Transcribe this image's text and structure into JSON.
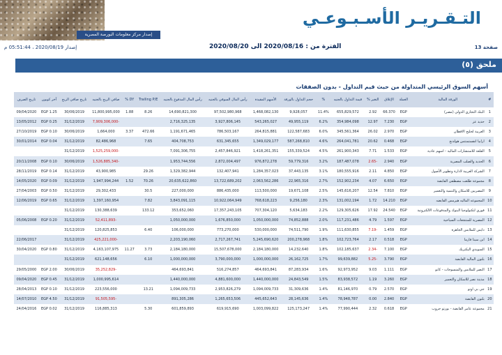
{
  "header": {
    "title": "التـقـريـر الأسـبـوعـي",
    "subtitle": "إصدار مركز معلومات البورصة المصرية",
    "page_label": "صفحة 13",
    "issue": "إصدار 2020/08/19 ، 05:51:44 م",
    "period": "الفترة من : 2020/08/16 الى 2020/08/20"
  },
  "section": {
    "title": "ملحق (٥)"
  },
  "table": {
    "title": "أسهم السوق الرئيسي المتداولة من حيث قيم التداول - بدون الصفقات",
    "columns": [
      "#",
      "الورقة المالية",
      "العملة",
      "الإغلاق",
      "التغير %",
      "قيمة التداول بالجنيه",
      "%",
      "حجم التداول بالورقة",
      "الأسهم المقيدة",
      "رأس المال السوقي بالجنيه",
      "رأس المال المدفوع بالجنيه",
      "Trailing P/E",
      "DY %",
      "صافي الربح بالجنيه",
      "تاريخ صافي الربح",
      "آخر كوبون",
      "تاريخ الصرف"
    ],
    "rows": [
      [
        "1",
        "البنك التجاري الدولي (مصر)",
        "EGP",
        "66.370",
        "2.92",
        "655,829,572",
        "11.4%",
        "9,928,057",
        "1,468,082,130",
        "97,502,980,968",
        "14,690,821,300",
        "8.26",
        "1.88",
        "11,800,995,000",
        "30/06/2019",
        "EGP 1.25",
        "09/04/2020"
      ],
      [
        "2",
        "حديد عز",
        "EGP",
        "7.230",
        "12.97",
        "354,984,098",
        "6.2%",
        "49,955,119",
        "543,265,027",
        "3,927,806,145",
        "2,716,325,135",
        "",
        "",
        "-7,909,306,000",
        "31/12/2019",
        "EGP 0.25",
        "13/05/2012"
      ],
      [
        "3",
        "العربية لحليج الاقطان",
        "EGP",
        "2.970",
        "26.02",
        "345,561,364",
        "6.0%",
        "122,587,683",
        "264,815,881",
        "786,503,167",
        "1,191,671,465",
        "472.66",
        "3.37",
        "1,664,000",
        "30/06/2019",
        "EGP 0.10",
        "27/10/2019"
      ],
      [
        "4",
        "ارابيا انفستمنتس هولدنج",
        "EGP",
        "0.468",
        "20.62",
        "264,041,781",
        "4.6%",
        "587,268,810",
        "1,349,029,177",
        "631,345,655",
        "404,708,753",
        "7.65",
        "",
        "82,486,968",
        "31/12/2019",
        "EGP 0.04",
        "30/01/2014"
      ],
      [
        "5",
        "القلعة للاستشارات المالية - اسهم عادية",
        "EGP",
        "1.533",
        "7.71",
        "261,900,343",
        "4.5%",
        "155,339,524",
        "1,418,261,351",
        "2,457,846,921",
        "7,091,306,755",
        "",
        "",
        "-1,525,259,000",
        "31/12/2019",
        "",
        ""
      ],
      [
        "6",
        "الحديد والصلب المصرية",
        "EGP",
        "2.940",
        "-2.65",
        "187,487,078",
        "3.2%",
        "59,779,316",
        "976,872,278",
        "2,872,004,497",
        "1,953,744,556",
        "",
        "",
        "-1,526,885,340",
        "30/06/2019",
        "EGP 0.10",
        "20/11/2008"
      ],
      [
        "7",
        "الشركة العربية لادارة وتطوير الأصول",
        "EGP",
        "4.850",
        "2.11",
        "180,555,916",
        "3.1%",
        "37,443,135",
        "1,284,357,023",
        "132,407,941",
        "1,329,382,944",
        "29.26",
        "",
        "43,900,985",
        "31/12/2019",
        "EGP 0.14",
        "28/11/2019"
      ],
      [
        "8",
        "مجموعة طلعت مصطفى القابضة",
        "EGP",
        "6.650",
        "4.07",
        "152,902,234",
        "2.7%",
        "22,965,316",
        "2,063,562,286",
        "13,722,689,202",
        "20,635,622,860",
        "70.26",
        "1.52",
        "1,947,994,244",
        "31/12/2019",
        "EGP 0.09",
        "14/05/2020"
      ],
      [
        "9",
        "المصريين للاسكان والتنمية والتعمير",
        "EGP",
        "7.810",
        "12.54",
        "145,616,207",
        "2.5%",
        "19,671,108",
        "113,500,000",
        "886,435,000",
        "227,000,000",
        "30.5",
        "",
        "29,302,433",
        "31/12/2019",
        "EGP 0.50",
        "27/04/2003"
      ],
      [
        "10",
        "المجموعه الماليه هيرمس القابضه",
        "EGP",
        "14.210",
        "1.72",
        "131,002,194",
        "2.3%",
        "9,256,180",
        "768,618,223",
        "10,922,064,949",
        "3,843,091,115",
        "7.82",
        "",
        "1,397,160,954",
        "31/12/2019",
        "EGP 0.65",
        "12/06/2019"
      ],
      [
        "11",
        "فوري لتكنولوجيا البنوك والمدفوعات الالكترونية",
        "EGP",
        "24.540",
        "17.92",
        "129,305,626",
        "2.2%",
        "5,634,183",
        "707,304,120",
        "17,357,243,105",
        "353,652,060",
        "133.12",
        "",
        "130,388,639",
        "31/12/2019",
        "",
        ""
      ],
      [
        "12",
        "المصرية للمنتجعات السياحية",
        "EGP",
        "1.597",
        "4.79",
        "117,231,486",
        "2.0%",
        "74,852,888",
        "1,050,000,000",
        "1,676,850,000",
        "1,050,000,000",
        "",
        "",
        "-52,411,893",
        "31/12/2019",
        "EGP 0.20",
        "05/06/2008"
      ],
      [
        "13",
        "دايس للملابس الجاهزة",
        "EGP",
        "1.459",
        "-7.19",
        "111,630,855",
        "1.9%",
        "74,511,790",
        "530,000,000",
        "773,270,000",
        "106,000,000",
        "6.40",
        "",
        "120,825,853",
        "31/12/2019",
        "",
        ""
      ],
      [
        "14",
        "ابن سينا فارما",
        "EGP",
        "0.518",
        "2.17",
        "102,723,764",
        "1.8%",
        "200,278,968",
        "5,245,690,620",
        "2,717,267,741",
        "2,203,190,060",
        "",
        "",
        "-425,221,000",
        "31/12/2019",
        "",
        "22/06/2017"
      ],
      [
        "15",
        "السويدي اليكتريك",
        "EGP",
        "7.100",
        "-2.34",
        "102,185,637",
        "1.8%",
        "14,232,640",
        "2,184,180,000",
        "15,507,678,000",
        "2,184,180,000",
        "3.73",
        "11.27",
        "4,163,107,975",
        "31/12/2019",
        "EGP 0.80",
        "30/04/2020"
      ],
      [
        "16",
        "بلتون المالية القابضة",
        "EGP",
        "3.790",
        "-5.25",
        "99,639,882",
        "1.7%",
        "26,162,725",
        "1,000,000,000",
        "3,790,000,000",
        "1,000,000,000",
        "6.10",
        "",
        "621,148,656",
        "31/12/2019",
        "",
        ""
      ],
      [
        "17",
        "النصر للملابس والمنسوجات - كابو",
        "EGP",
        "1.111",
        "9.03",
        "92,973,952",
        "1.6%",
        "87,283,934",
        "464,693,841",
        "516,274,857",
        "464,693,841",
        "",
        "",
        "-35,252,829",
        "30/06/2019",
        "EGP 2.00",
        "29/05/2000"
      ],
      [
        "18",
        "مدينة نصر للاسكان والتعمير",
        "EGP",
        "3.260",
        "1.19",
        "83,938,572",
        "1.5%",
        "24,843,549",
        "1,440,000,000",
        "4,881,600,000",
        "1,440,000,000",
        "",
        "",
        "1,000,995,614",
        "31/12/2019",
        "EGP 0.45",
        "09/04/2020"
      ],
      [
        "19",
        "جي بي اوتو",
        "EGP",
        "2.570",
        "0.79",
        "81,146,970",
        "1.4%",
        "31,309,636",
        "1,094,009,733",
        "2,953,826,279",
        "1,094,009,733",
        "13.21",
        "",
        "223,556,000",
        "31/12/2019",
        "EGP 0.10",
        "28/04/2013"
      ],
      [
        "20",
        "بلتون القابضة",
        "EGP",
        "2.840",
        "0.00",
        "78,948,787",
        "1.4%",
        "28,145,636",
        "445,652,643",
        "1,265,653,506",
        "891,305,286",
        "",
        "",
        "-91,505,595",
        "31/12/2019",
        "EGP 4.50",
        "14/07/2010"
      ],
      [
        "21",
        "مجموعة عامر القابضة - بورتو جروب",
        "EGP",
        "0.618",
        "2.32",
        "77,990,444",
        "1.4%",
        "125,173,247",
        "1,003,099,822",
        "619,915,690",
        "601,859,893",
        "5.30",
        "",
        "116,885,313",
        "31/12/2019",
        "EGP 0.02",
        "24/04/2016"
      ]
    ]
  }
}
